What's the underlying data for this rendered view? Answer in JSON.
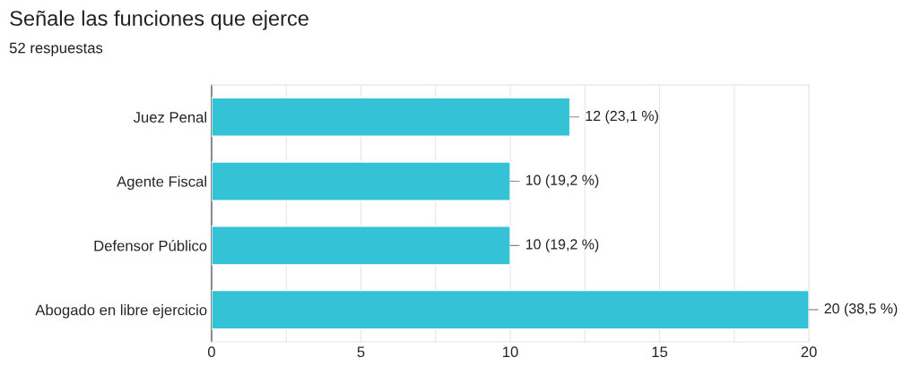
{
  "chart_data": {
    "type": "bar",
    "orientation": "horizontal",
    "title": "Señale las funciones que ejerce",
    "subtitle": "52 respuestas",
    "categories": [
      "Juez Penal",
      "Agente Fiscal",
      "Defensor Público",
      "Abogado en libre ejercicio"
    ],
    "values": [
      12,
      10,
      10,
      20
    ],
    "color": "#34c3d6",
    "value_labels": [
      "12 (23,1 %)",
      "10 (19,2 %)",
      "10 (19,2 %)",
      "20 (38,5 %)"
    ],
    "xlim": [
      0,
      20
    ],
    "xticks": [
      0,
      {
        "value": 2.5,
        "label": null
      },
      5,
      {
        "value": 7.5,
        "label": null
      },
      10,
      {
        "value": 12.5,
        "label": null
      },
      15,
      {
        "value": 17.5,
        "label": null
      },
      20
    ],
    "grid": "x",
    "legend": false
  }
}
